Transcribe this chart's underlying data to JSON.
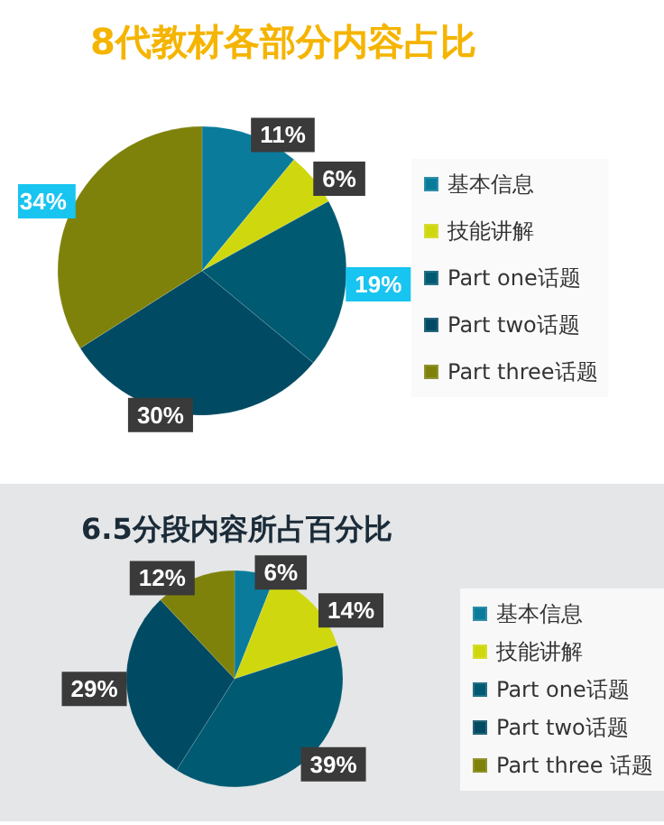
{
  "chart_data": [
    {
      "type": "pie",
      "title": "8代教材各部分内容占比",
      "categories": [
        "基本信息",
        "技能讲解",
        "Part one话题",
        "Part two话题",
        "Part three话题"
      ],
      "values": [
        11,
        6,
        19,
        30,
        34
      ],
      "value_labels": [
        "11%",
        "6%",
        "19%",
        "30%",
        "34%"
      ],
      "colors": [
        "#0a7b9b",
        "#cfd80e",
        "#005a72",
        "#004a63",
        "#7e820a"
      ],
      "legend": "right"
    },
    {
      "type": "pie",
      "title": "6.5分段内容所占百分比",
      "categories": [
        "基本信息",
        "技能讲解",
        "Part one话题",
        "Part two话题",
        "Part three 话题"
      ],
      "values": [
        6,
        14,
        39,
        29,
        12
      ],
      "value_labels": [
        "6%",
        "14%",
        "39%",
        "29%",
        "12%"
      ],
      "colors": [
        "#0a7b9b",
        "#cfd80e",
        "#005a72",
        "#004a63",
        "#7e820a"
      ],
      "legend": "right"
    }
  ]
}
